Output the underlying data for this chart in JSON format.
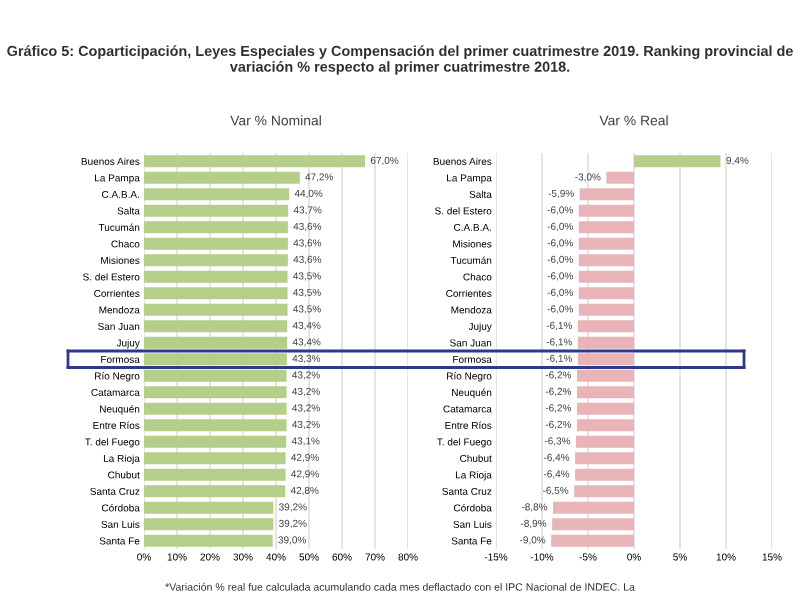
{
  "chart_data": [
    {
      "type": "bar",
      "orientation": "horizontal",
      "title": "Gráfico 5: Coparticipación, Leyes Especiales y Compensación del primer cuatrimestre 2019. Ranking provincial de variación % respecto al primer cuatrimestre 2018.",
      "subtitle": "Var % Nominal",
      "categories": [
        "Buenos Aires",
        "La Pampa",
        "C.A.B.A.",
        "Salta",
        "Tucumán",
        "Chaco",
        "Misiones",
        "S. del Estero",
        "Corrientes",
        "Mendoza",
        "San Juan",
        "Jujuy",
        "Formosa",
        "Río Negro",
        "Catamarca",
        "Neuquén",
        "Entre Ríos",
        "T. del Fuego",
        "La Rioja",
        "Chubut",
        "Santa Cruz",
        "Córdoba",
        "San Luis",
        "Santa Fe"
      ],
      "values": [
        67.0,
        47.2,
        44.0,
        43.7,
        43.6,
        43.6,
        43.6,
        43.5,
        43.5,
        43.5,
        43.4,
        43.4,
        43.3,
        43.2,
        43.2,
        43.2,
        43.2,
        43.1,
        42.9,
        42.9,
        42.8,
        39.2,
        39.2,
        39.0
      ],
      "value_labels": [
        "67,0%",
        "47,2%",
        "44,0%",
        "43,7%",
        "43,6%",
        "43,6%",
        "43,6%",
        "43,5%",
        "43,5%",
        "43,5%",
        "43,4%",
        "43,4%",
        "43,3%",
        "43,2%",
        "43,2%",
        "43,2%",
        "43,2%",
        "43,1%",
        "42,9%",
        "42,9%",
        "42,8%",
        "39,2%",
        "39,2%",
        "39,0%"
      ],
      "color": "#b5cf8a",
      "xlim": [
        0,
        80
      ],
      "xticks": [
        {
          "value": 0,
          "label": "0%"
        },
        {
          "value": 10,
          "label": "10%"
        },
        {
          "value": 20,
          "label": "20%"
        },
        {
          "value": 30,
          "label": "30%"
        },
        {
          "value": 40,
          "label": "40%"
        },
        {
          "value": 50,
          "label": "50%"
        },
        {
          "value": 60,
          "label": "60%"
        },
        {
          "value": 70,
          "label": "70%"
        },
        {
          "value": 80,
          "label": "80%"
        }
      ],
      "grid": "x",
      "legend": false
    },
    {
      "type": "bar",
      "orientation": "horizontal",
      "subtitle": "Var % Real",
      "categories": [
        "Buenos Aires",
        "La Pampa",
        "Salta",
        "S. del Estero",
        "C.A.B.A.",
        "Misiones",
        "Tucumán",
        "Chaco",
        "Corrientes",
        "Mendoza",
        "Jujuy",
        "San Juan",
        "Formosa",
        "Río Negro",
        "Neuquén",
        "Catamarca",
        "Entre Ríos",
        "T. del Fuego",
        "Chubut",
        "La Rioja",
        "Santa Cruz",
        "Córdoba",
        "San Luis",
        "Santa Fe"
      ],
      "values": [
        9.4,
        -3.0,
        -5.9,
        -6.0,
        -6.0,
        -6.0,
        -6.0,
        -6.0,
        -6.0,
        -6.0,
        -6.1,
        -6.1,
        -6.1,
        -6.2,
        -6.2,
        -6.2,
        -6.2,
        -6.3,
        -6.4,
        -6.4,
        -6.5,
        -8.8,
        -8.9,
        -9.0
      ],
      "value_labels": [
        "9,4%",
        "-3,0%",
        "-5,9%",
        "-6,0%",
        "-6,0%",
        "-6,0%",
        "-6,0%",
        "-6,0%",
        "-6,0%",
        "-6,0%",
        "-6,1%",
        "-6,1%",
        "-6,1%",
        "-6,2%",
        "-6,2%",
        "-6,2%",
        "-6,2%",
        "-6,3%",
        "-6,4%",
        "-6,4%",
        "-6,5%",
        "-8,8%",
        "-8,9%",
        "-9,0%"
      ],
      "colors": [
        "#b5cf8a",
        "#e8b4b8",
        "#e8b4b8",
        "#e8b4b8",
        "#e8b4b8",
        "#e8b4b8",
        "#e8b4b8",
        "#e8b4b8",
        "#e8b4b8",
        "#e8b4b8",
        "#e8b4b8",
        "#e8b4b8",
        "#e8b4b8",
        "#e8b4b8",
        "#e8b4b8",
        "#e8b4b8",
        "#e8b4b8",
        "#e8b4b8",
        "#e8b4b8",
        "#e8b4b8",
        "#e8b4b8",
        "#e8b4b8",
        "#e8b4b8",
        "#e8b4b8"
      ],
      "xlim": [
        -15,
        15
      ],
      "xticks": [
        {
          "value": -15,
          "label": "-15%"
        },
        {
          "value": -10,
          "label": "-10%"
        },
        {
          "value": -5,
          "label": "-5%"
        },
        {
          "value": 0,
          "label": "0%"
        },
        {
          "value": 5,
          "label": "5%"
        },
        {
          "value": 10,
          "label": "10%"
        },
        {
          "value": 15,
          "label": "15%"
        }
      ],
      "grid": "x",
      "legend": false,
      "annotations": [
        "*Variación % real fue calculada acumulando cada mes deflactado con el IPC Nacional de INDEC. La"
      ]
    }
  ]
}
